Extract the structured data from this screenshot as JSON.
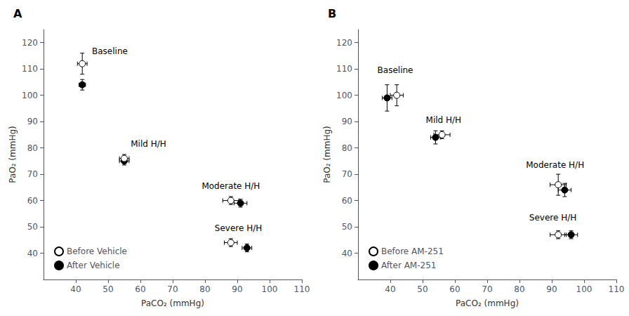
{
  "chart_data": [
    {
      "type": "scatter",
      "title": "A",
      "xlabel": "PaCO₂ (mmHg)",
      "ylabel": "PaO₂ (mmHg)",
      "xlim": [
        30,
        110
      ],
      "ylim": [
        30,
        125
      ],
      "xticks": [
        40,
        50,
        60,
        70,
        80,
        90,
        100,
        110
      ],
      "yticks": [
        40,
        50,
        60,
        70,
        80,
        90,
        100,
        110,
        120
      ],
      "grid": false,
      "legend": "lower left",
      "series": [
        {
          "name": "Before Vehicle",
          "color": "white",
          "marker": "circle",
          "x": [
            42,
            55,
            88,
            88
          ],
          "values": [
            112,
            76,
            60,
            44
          ],
          "xerr": [
            1.5,
            1.5,
            2.5,
            2.0
          ],
          "yerr": [
            4.0,
            1.5,
            1.5,
            1.5
          ]
        },
        {
          "name": "After Vehicle",
          "color": "black",
          "marker": "circle",
          "x": [
            42,
            55,
            91,
            93
          ],
          "values": [
            104,
            75,
            59,
            42
          ],
          "xerr": [
            1.0,
            1.5,
            2.0,
            1.5
          ],
          "yerr": [
            2.0,
            1.5,
            1.5,
            1.5
          ]
        }
      ],
      "annotations": [
        {
          "text": "Baseline",
          "x": 45,
          "y": 115
        },
        {
          "text": "Mild H/H",
          "x": 57,
          "y": 80
        },
        {
          "text": "Moderate H/H",
          "x": 79,
          "y": 64
        },
        {
          "text": "Severe H/H",
          "x": 83,
          "y": 48
        }
      ]
    },
    {
      "type": "scatter",
      "title": "B",
      "xlabel": "PaCO₂ (mmHg)",
      "ylabel": "PaO₂ (mmHg)",
      "xlim": [
        30,
        110
      ],
      "ylim": [
        30,
        125
      ],
      "xticks": [
        40,
        50,
        60,
        70,
        80,
        90,
        100,
        110
      ],
      "yticks": [
        40,
        50,
        60,
        70,
        80,
        90,
        100,
        110,
        120
      ],
      "grid": false,
      "legend": "lower left",
      "series": [
        {
          "name": "Before AM-251",
          "color": "white",
          "marker": "circle",
          "x": [
            42,
            56,
            92,
            92
          ],
          "values": [
            100,
            85,
            66,
            47
          ],
          "xerr": [
            2.0,
            2.5,
            2.5,
            2.5
          ],
          "yerr": [
            4.0,
            1.5,
            4.0,
            1.5
          ]
        },
        {
          "name": "After AM-251",
          "color": "black",
          "marker": "circle",
          "x": [
            39,
            54,
            94,
            96
          ],
          "values": [
            99,
            84,
            64,
            47
          ],
          "xerr": [
            1.5,
            1.5,
            2.0,
            2.0
          ],
          "yerr": [
            5.0,
            2.5,
            2.5,
            1.5
          ]
        }
      ],
      "annotations": [
        {
          "text": "Baseline",
          "x": 36,
          "y": 108
        },
        {
          "text": "Mild H/H",
          "x": 51,
          "y": 89
        },
        {
          "text": "Moderate H/H",
          "x": 82,
          "y": 72
        },
        {
          "text": "Severe H/H",
          "x": 83,
          "y": 52
        }
      ]
    }
  ]
}
